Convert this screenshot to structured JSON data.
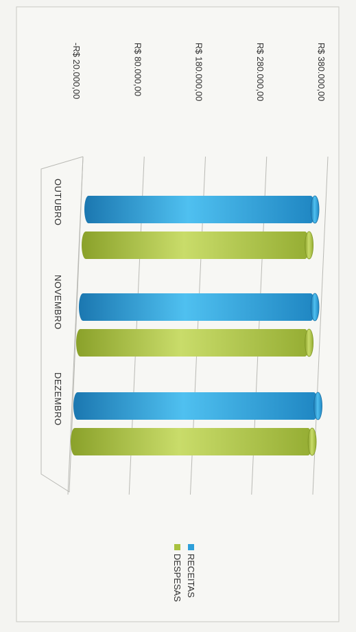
{
  "chart_data": {
    "type": "bar",
    "orientation": "rotated-90-clockwise",
    "categories": [
      "OUTUBRO",
      "NOVEMBRO",
      "DEZEMBRO"
    ],
    "series": [
      {
        "name": "RECEITAS",
        "values": [
          370000,
          370000,
          375000
        ],
        "color": "#2e9fd9"
      },
      {
        "name": "DESPESAS",
        "values": [
          365000,
          365000,
          370000
        ],
        "color": "#a9c23f"
      }
    ],
    "y_ticks": [
      -20000,
      80000,
      180000,
      280000,
      380000
    ],
    "y_tick_labels": [
      "-R$ 20.000,00",
      "R$ 80.000,00",
      "R$ 180.000,00",
      "R$ 280.000,00",
      "R$ 380.000,00"
    ],
    "ylim": [
      -20000,
      380000
    ],
    "grid": true,
    "legend_position": "bottom",
    "style_3d": true
  }
}
